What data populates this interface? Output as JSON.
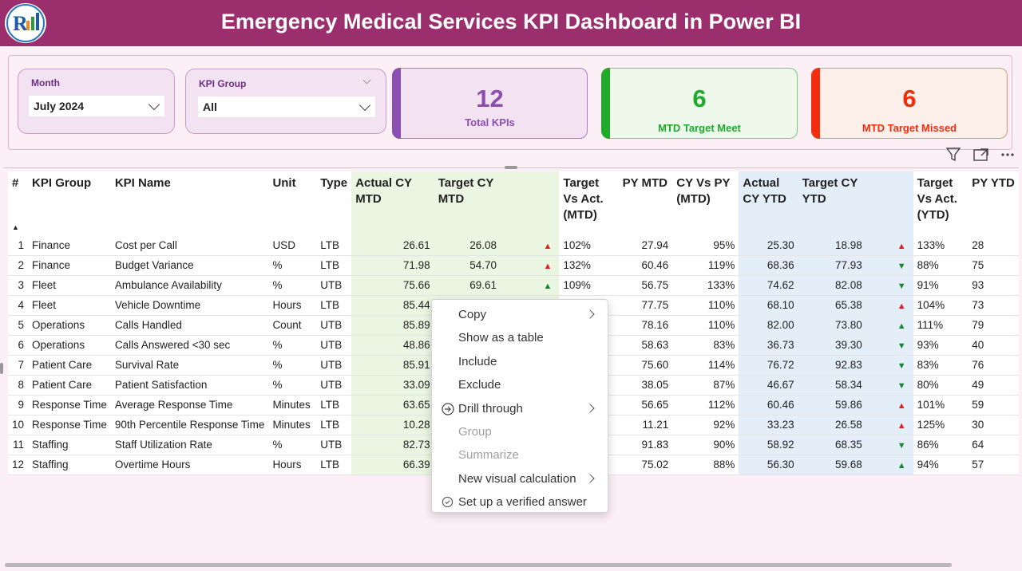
{
  "header": {
    "title": "Emergency Medical Services KPI Dashboard in Power BI"
  },
  "colors": {
    "header": "#9b2f6e",
    "total": "#8a4fb0",
    "meet": "#1faa2a",
    "missed": "#f02e0e"
  },
  "slicers": [
    {
      "label": "Month",
      "value": "July 2024"
    },
    {
      "label": "KPI Group",
      "value": "All"
    }
  ],
  "cards": [
    {
      "value": "12",
      "caption": "Total KPIs"
    },
    {
      "value": "6",
      "caption": "MTD Target Meet"
    },
    {
      "value": "6",
      "caption": "MTD Target Missed"
    }
  ],
  "table": {
    "headers": [
      "#",
      "KPI Group",
      "KPI Name",
      "Unit",
      "Type",
      "Actual CY MTD",
      "Target CY MTD",
      "",
      "Target Vs Act. (MTD)",
      "PY MTD",
      "CY Vs PY (MTD)",
      "Actual CY YTD",
      "Target CY YTD",
      "",
      "Target Vs Act. (YTD)",
      "PY YTD"
    ],
    "rows": [
      {
        "no": "1",
        "group": "Finance",
        "name": "Cost per Call",
        "unit": "USD",
        "type": "LTB",
        "acm": "26.61",
        "tcm": "26.08",
        "mtd_dir": "up",
        "mtd": "102%",
        "pym": "27.94",
        "cvp": "95%",
        "acy": "25.30",
        "tcy": "18.98",
        "ytd_dir": "up",
        "ytd": "133%",
        "pyy": "28"
      },
      {
        "no": "2",
        "group": "Finance",
        "name": "Budget Variance",
        "unit": "%",
        "type": "LTB",
        "acm": "71.98",
        "tcm": "54.70",
        "mtd_dir": "up",
        "mtd": "132%",
        "pym": "60.46",
        "cvp": "119%",
        "acy": "68.36",
        "tcy": "77.93",
        "ytd_dir": "down",
        "ytd": "88%",
        "pyy": "75"
      },
      {
        "no": "3",
        "group": "Fleet",
        "name": "Ambulance Availability",
        "unit": "%",
        "type": "UTB",
        "acm": "75.66",
        "tcm": "69.61",
        "mtd_dir": "good",
        "mtd": "109%",
        "pym": "56.75",
        "cvp": "133%",
        "acy": "74.62",
        "tcy": "82.08",
        "ytd_dir": "down",
        "ytd": "91%",
        "pyy": "93"
      },
      {
        "no": "4",
        "group": "Fleet",
        "name": "Vehicle Downtime",
        "unit": "Hours",
        "type": "LTB",
        "acm": "85.44",
        "tcm": "",
        "mtd_dir": "",
        "mtd": "",
        "pym": "77.75",
        "cvp": "110%",
        "acy": "68.10",
        "tcy": "65.38",
        "ytd_dir": "up",
        "ytd": "104%",
        "pyy": "73"
      },
      {
        "no": "5",
        "group": "Operations",
        "name": "Calls Handled",
        "unit": "Count",
        "type": "UTB",
        "acm": "85.89",
        "tcm": "",
        "mtd_dir": "",
        "mtd": "",
        "pym": "78.16",
        "cvp": "110%",
        "acy": "82.00",
        "tcy": "73.80",
        "ytd_dir": "good",
        "ytd": "111%",
        "pyy": "79"
      },
      {
        "no": "6",
        "group": "Operations",
        "name": "Calls Answered <30 sec",
        "unit": "%",
        "type": "UTB",
        "acm": "48.86",
        "tcm": "",
        "mtd_dir": "",
        "mtd": "",
        "pym": "58.63",
        "cvp": "83%",
        "acy": "36.73",
        "tcy": "39.30",
        "ytd_dir": "down",
        "ytd": "93%",
        "pyy": "40"
      },
      {
        "no": "7",
        "group": "Patient Care",
        "name": "Survival Rate",
        "unit": "%",
        "type": "UTB",
        "acm": "85.91",
        "tcm": "",
        "mtd_dir": "",
        "mtd": "",
        "pym": "75.60",
        "cvp": "114%",
        "acy": "76.72",
        "tcy": "92.83",
        "ytd_dir": "down",
        "ytd": "83%",
        "pyy": "76"
      },
      {
        "no": "8",
        "group": "Patient Care",
        "name": "Patient Satisfaction",
        "unit": "%",
        "type": "UTB",
        "acm": "33.09",
        "tcm": "",
        "mtd_dir": "",
        "mtd": "",
        "pym": "38.05",
        "cvp": "87%",
        "acy": "46.67",
        "tcy": "58.34",
        "ytd_dir": "down",
        "ytd": "80%",
        "pyy": "49"
      },
      {
        "no": "9",
        "group": "Response Time",
        "name": "Average Response Time",
        "unit": "Minutes",
        "type": "LTB",
        "acm": "63.65",
        "tcm": "",
        "mtd_dir": "",
        "mtd": "",
        "pym": "56.65",
        "cvp": "112%",
        "acy": "60.46",
        "tcy": "59.86",
        "ytd_dir": "up",
        "ytd": "101%",
        "pyy": "59"
      },
      {
        "no": "10",
        "group": "Response Time",
        "name": "90th Percentile Response Time",
        "unit": "Minutes",
        "type": "LTB",
        "acm": "10.28",
        "tcm": "",
        "mtd_dir": "",
        "mtd": "",
        "pym": "11.21",
        "cvp": "92%",
        "acy": "33.23",
        "tcy": "26.58",
        "ytd_dir": "up",
        "ytd": "125%",
        "pyy": "30"
      },
      {
        "no": "11",
        "group": "Staffing",
        "name": "Staff Utilization Rate",
        "unit": "%",
        "type": "UTB",
        "acm": "82.73",
        "tcm": "",
        "mtd_dir": "",
        "mtd": "",
        "pym": "91.83",
        "cvp": "90%",
        "acy": "58.92",
        "tcy": "68.35",
        "ytd_dir": "down",
        "ytd": "86%",
        "pyy": "64"
      },
      {
        "no": "12",
        "group": "Staffing",
        "name": "Overtime Hours",
        "unit": "Hours",
        "type": "LTB",
        "acm": "66.39",
        "tcm": "",
        "mtd_dir": "",
        "mtd": "",
        "pym": "75.02",
        "cvp": "88%",
        "acy": "56.30",
        "tcy": "59.68",
        "ytd_dir": "good",
        "ytd": "94%",
        "pyy": "57"
      }
    ]
  },
  "context_menu": {
    "items": [
      {
        "label": "Copy",
        "submenu": true,
        "disabled": false,
        "icon": ""
      },
      {
        "label": "Show as a table",
        "submenu": false,
        "disabled": false,
        "icon": ""
      },
      {
        "label": "Include",
        "submenu": false,
        "disabled": false,
        "icon": ""
      },
      {
        "label": "Exclude",
        "submenu": false,
        "disabled": false,
        "icon": ""
      },
      {
        "label": "Drill through",
        "submenu": true,
        "disabled": false,
        "icon": "drill-through-icon"
      },
      {
        "label": "Group",
        "submenu": false,
        "disabled": true,
        "icon": ""
      },
      {
        "label": "Summarize",
        "submenu": false,
        "disabled": true,
        "icon": ""
      },
      {
        "label": "New visual calculation",
        "submenu": true,
        "disabled": false,
        "icon": ""
      },
      {
        "label": "Set up a verified answer",
        "submenu": false,
        "disabled": false,
        "icon": "verified-check-icon"
      }
    ]
  }
}
